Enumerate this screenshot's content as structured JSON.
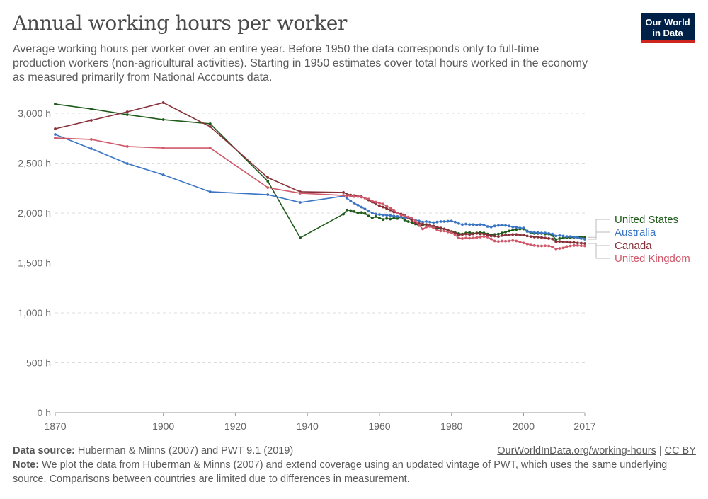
{
  "title": "Annual working hours per worker",
  "subtitle": "Average working hours per worker over an entire year. Before 1950 the data corresponds only to full-time production workers (non-agricultural activities). Starting in 1950 estimates cover total hours worked in the economy as measured primarily from National Accounts data.",
  "logo": {
    "line1": "Our World",
    "line2": "in Data",
    "bg": "#002147",
    "accent": "#ce261e"
  },
  "footer": {
    "source_label": "Data source:",
    "source_text": " Huberman & Minns (2007) and PWT 9.1 (2019)",
    "link": "OurWorldInData.org/working-hours",
    "sep": " | ",
    "license": "CC BY",
    "note_label": "Note:",
    "note_text": " We plot the data from Huberman & Minns (2007) and extend coverage using an updated vintage of PWT, which uses the same underlying source. Comparisons between countries are limited due to differences in measurement."
  },
  "chart_data": {
    "type": "line",
    "title": "Annual working hours per worker",
    "xlim": [
      1870,
      2017
    ],
    "ylim": [
      0,
      3000
    ],
    "grid": "horizontal dashed",
    "legend": "right, end-of-line labels",
    "x_ticks": [
      "1870",
      "1900",
      "1920",
      "1940",
      "1960",
      "1980",
      "2000",
      "2017"
    ],
    "y_ticks": [
      "0 h",
      "500 h",
      "1,000 h",
      "1,500 h",
      "2,000 h",
      "2,500 h",
      "3,000 h"
    ],
    "early_years": [
      1870,
      1880,
      1890,
      1900,
      1913,
      1929,
      1938,
      1950
    ],
    "series": [
      {
        "name": "United States",
        "color": "#1e5b1a",
        "early": [
          3092,
          3043,
          2986,
          2936,
          2894,
          2319,
          1752,
          1989
        ],
        "annual_from_1950": [
          1989,
          2030,
          2025,
          2015,
          2000,
          2005,
          1995,
          1970,
          1950,
          1965,
          1950,
          1935,
          1945,
          1940,
          1950,
          1945,
          1960,
          1930,
          1915,
          1905,
          1890,
          1875,
          1880,
          1885,
          1875,
          1850,
          1850,
          1845,
          1840,
          1830,
          1815,
          1805,
          1795,
          1790,
          1800,
          1805,
          1795,
          1800,
          1805,
          1800,
          1790,
          1780,
          1785,
          1790,
          1800,
          1810,
          1820,
          1830,
          1835,
          1840,
          1840,
          1820,
          1800,
          1795,
          1795,
          1795,
          1790,
          1790,
          1775,
          1735,
          1745,
          1750,
          1755,
          1755,
          1755,
          1760,
          1760,
          1757
        ]
      },
      {
        "name": "Australia",
        "color": "#3a75c4",
        "early": [
          2787,
          2645,
          2496,
          2383,
          2213,
          2184,
          2106,
          2170
        ],
        "annual_from_1950": [
          2170,
          2150,
          2120,
          2100,
          2080,
          2060,
          2040,
          2020,
          2000,
          1990,
          1985,
          1980,
          1978,
          1975,
          1970,
          1965,
          1960,
          1955,
          1950,
          1940,
          1930,
          1920,
          1910,
          1915,
          1910,
          1905,
          1910,
          1915,
          1915,
          1918,
          1920,
          1910,
          1895,
          1885,
          1890,
          1885,
          1885,
          1880,
          1885,
          1880,
          1865,
          1860,
          1870,
          1875,
          1880,
          1875,
          1870,
          1860,
          1860,
          1850,
          1850,
          1815,
          1810,
          1805,
          1805,
          1800,
          1800,
          1795,
          1790,
          1770,
          1775,
          1770,
          1765,
          1765,
          1760,
          1755,
          1745,
          1738
        ]
      },
      {
        "name": "Canada",
        "color": "#883039",
        "early": [
          2844,
          2929,
          3014,
          3106,
          2865,
          2355,
          2213,
          2206
        ],
        "annual_from_1950": [
          2206,
          2190,
          2180,
          2175,
          2170,
          2165,
          2150,
          2130,
          2110,
          2090,
          2070,
          2060,
          2045,
          2030,
          2010,
          2000,
          1990,
          1975,
          1950,
          1925,
          1900,
          1895,
          1890,
          1885,
          1875,
          1870,
          1860,
          1850,
          1840,
          1830,
          1810,
          1800,
          1780,
          1785,
          1790,
          1785,
          1790,
          1795,
          1790,
          1790,
          1780,
          1770,
          1770,
          1765,
          1775,
          1780,
          1780,
          1785,
          1785,
          1780,
          1780,
          1770,
          1765,
          1760,
          1760,
          1755,
          1750,
          1745,
          1740,
          1710,
          1715,
          1710,
          1710,
          1705,
          1705,
          1700,
          1698,
          1695
        ]
      },
      {
        "name": "United Kingdom",
        "color": "#d05a6b",
        "early": [
          2752,
          2738,
          2667,
          2652,
          2652,
          2255,
          2199,
          2177
        ],
        "annual_from_1950": [
          2177,
          2175,
          2170,
          2165,
          2165,
          2160,
          2150,
          2140,
          2120,
          2110,
          2100,
          2090,
          2070,
          2050,
          2030,
          2000,
          1980,
          1970,
          1960,
          1950,
          1920,
          1880,
          1840,
          1860,
          1865,
          1850,
          1830,
          1820,
          1820,
          1810,
          1800,
          1780,
          1750,
          1745,
          1750,
          1748,
          1750,
          1755,
          1760,
          1765,
          1760,
          1740,
          1720,
          1715,
          1720,
          1718,
          1720,
          1725,
          1720,
          1710,
          1700,
          1690,
          1680,
          1675,
          1670,
          1670,
          1672,
          1670,
          1660,
          1640,
          1645,
          1650,
          1665,
          1670,
          1675,
          1675,
          1672,
          1670
        ]
      }
    ]
  }
}
